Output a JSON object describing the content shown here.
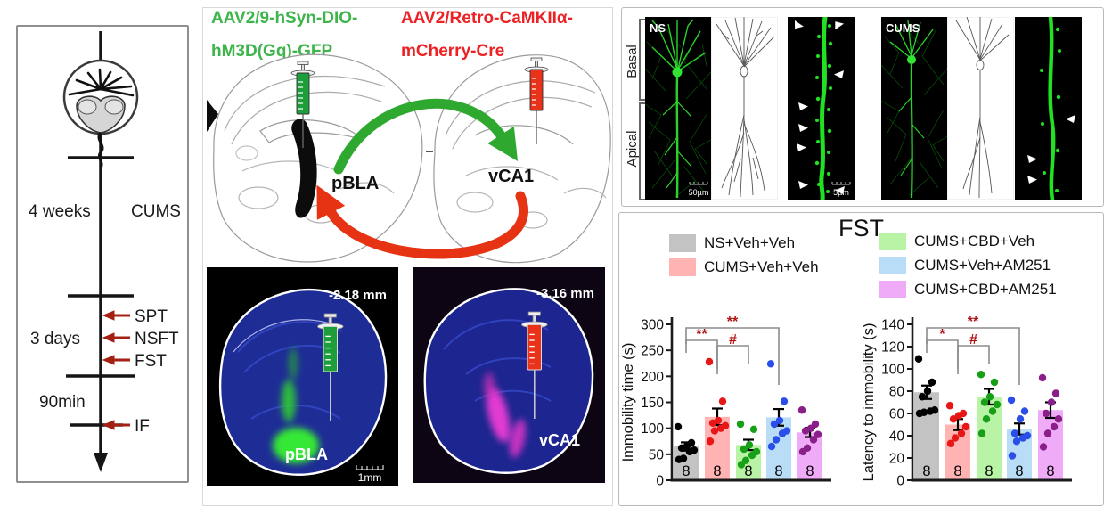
{
  "timeline": {
    "interval1": "4 weeks",
    "stress": "CUMS",
    "interval2": "3 days",
    "test1": "SPT",
    "test2": "NSFT",
    "test3": "FST",
    "interval3": "90min",
    "test4": "IF"
  },
  "viral": {
    "green_line1": "AAV2/9-hSyn-DIO-",
    "green_line2": "hM3D(Gq)-GFP",
    "red_line1": "AAV2/Retro-CaMKIIα-",
    "red_line2": "mCherry-Cre",
    "green_color": "#3db54b",
    "red_color": "#ed2224",
    "source_region": "pBLA",
    "target_region": "vCA1",
    "section_left": {
      "ap": "-2.18 mm",
      "region": "pBLA",
      "scale": "1mm"
    },
    "section_right": {
      "ap": "-3.16 mm",
      "region": "vCA1"
    }
  },
  "microscopy": {
    "group_left": "NS",
    "group_right": "CUMS",
    "label_basal": "Basal",
    "label_apical": "Apical",
    "scale_neuron": "50µm",
    "scale_spine": "5µm"
  },
  "fst": {
    "title": "FST",
    "sig_color": "#b01515",
    "legend": [
      {
        "label": "NS+Veh+Veh",
        "color": "#c3c3c3"
      },
      {
        "label": "CUMS+Veh+Veh",
        "color": "#ffb3b3"
      },
      {
        "label": "CUMS+CBD+Veh",
        "color": "#b9f3a6"
      },
      {
        "label": "CUMS+Veh+AM251",
        "color": "#b9dcf7"
      },
      {
        "label": "CUMS+CBD+AM251",
        "color": "#efabf7"
      }
    ]
  },
  "chart_data": [
    {
      "type": "bar",
      "title": "FST",
      "ylabel": "Immobility time (s)",
      "ylim": [
        0,
        300
      ],
      "yticks": [
        0,
        50,
        100,
        150,
        200,
        250,
        300
      ],
      "categories": [
        "NS+Veh+Veh",
        "CUMS+Veh+Veh",
        "CUMS+CBD+Veh",
        "CUMS+Veh+AM251",
        "CUMS+CBD+AM251"
      ],
      "values": [
        65,
        122,
        68,
        121,
        92
      ],
      "errors": [
        8,
        16,
        10,
        16,
        9
      ],
      "n": [
        "8",
        "8",
        "8",
        "8",
        "8"
      ],
      "bar_colors": [
        "#c3c3c3",
        "#ffb3b3",
        "#b9f3a6",
        "#b9dcf7",
        "#efabf7"
      ],
      "dot_colors": [
        "#000000",
        "#e81717",
        "#17a017",
        "#2a4fe8",
        "#8a1f8a"
      ],
      "points": [
        [
          40,
          42,
          55,
          58,
          62,
          66,
          72,
          103
        ],
        [
          75,
          95,
          100,
          105,
          110,
          115,
          152,
          228
        ],
        [
          30,
          38,
          48,
          55,
          60,
          68,
          98,
          108
        ],
        [
          65,
          78,
          90,
          95,
          108,
          115,
          152,
          224
        ],
        [
          55,
          62,
          78,
          88,
          95,
          100,
          108,
          135
        ]
      ],
      "significance": [
        {
          "a": 0,
          "b": 1,
          "label": "**"
        },
        {
          "a": 1,
          "b": 2,
          "label": "#"
        },
        {
          "a": 0,
          "b": 3,
          "label": "**"
        }
      ]
    },
    {
      "type": "bar",
      "ylabel": "Latency to immobility (s)",
      "ylim": [
        0,
        140
      ],
      "yticks": [
        0,
        20,
        40,
        60,
        80,
        100,
        120,
        140
      ],
      "categories": [
        "NS+Veh+Veh",
        "CUMS+Veh+Veh",
        "CUMS+CBD+Veh",
        "CUMS+Veh+AM251",
        "CUMS+CBD+AM251"
      ],
      "values": [
        79,
        50,
        75,
        46,
        63
      ],
      "errors": [
        6,
        5,
        7,
        5,
        7
      ],
      "n": [
        "8",
        "8",
        "8",
        "8",
        "8"
      ],
      "bar_colors": [
        "#c3c3c3",
        "#ffb3b3",
        "#b9f3a6",
        "#b9dcf7",
        "#efabf7"
      ],
      "dot_colors": [
        "#000000",
        "#e81717",
        "#17a017",
        "#2a4fe8",
        "#8a1f8a"
      ],
      "points": [
        [
          60,
          61,
          62,
          63,
          75,
          80,
          88,
          109
        ],
        [
          33,
          38,
          42,
          48,
          55,
          58,
          60,
          67
        ],
        [
          42,
          55,
          62,
          68,
          70,
          75,
          88,
          95
        ],
        [
          22,
          35,
          38,
          40,
          42,
          55,
          62,
          72
        ],
        [
          30,
          42,
          48,
          55,
          60,
          70,
          78,
          92
        ]
      ],
      "significance": [
        {
          "a": 0,
          "b": 1,
          "label": "*"
        },
        {
          "a": 1,
          "b": 2,
          "label": "#"
        },
        {
          "a": 0,
          "b": 3,
          "label": "**"
        }
      ]
    }
  ]
}
